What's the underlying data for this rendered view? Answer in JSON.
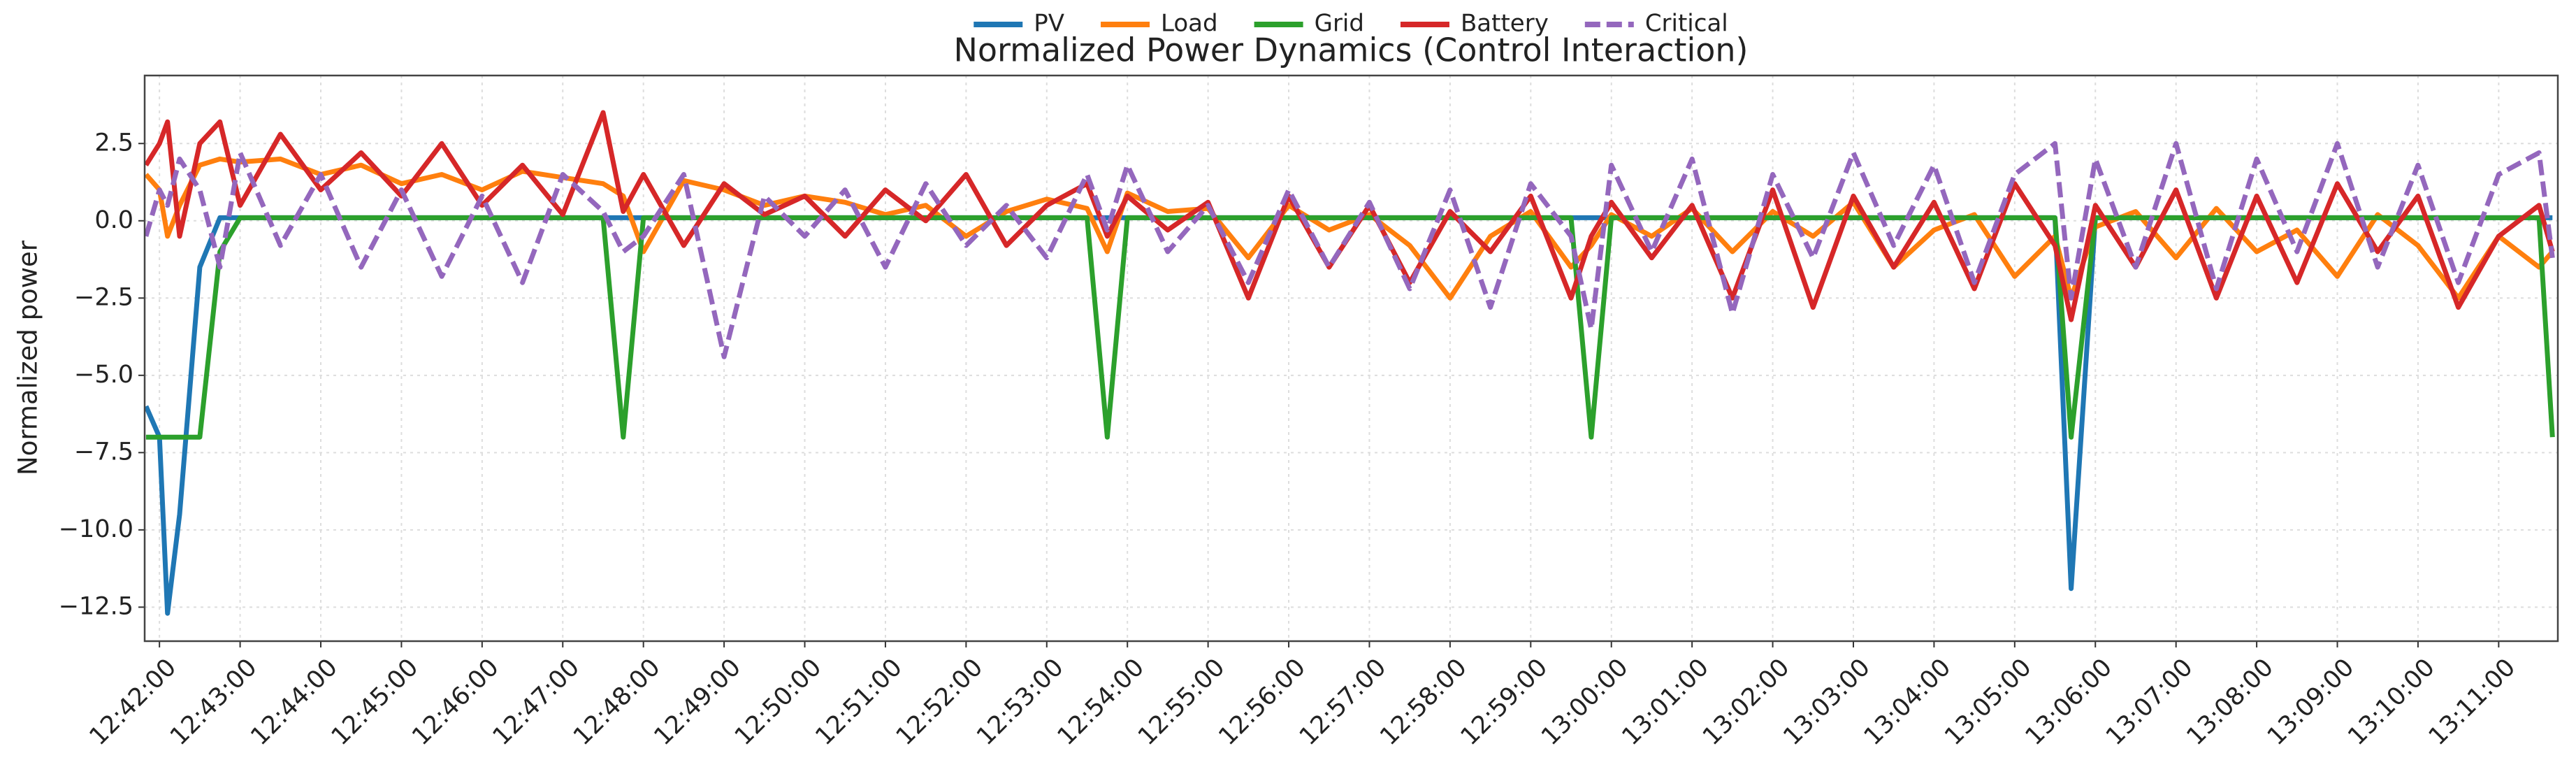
{
  "chart_data": {
    "type": "line",
    "title": "Normalized Power Dynamics (Control Interaction)",
    "y_label": "Normalized power",
    "grid": true,
    "legend": "top",
    "xlim": [
      "12:41:49",
      "13:11:44"
    ],
    "ylim": [
      -13.6,
      4.7
    ],
    "xticks": [
      "12:42:00",
      "12:43:00",
      "12:44:00",
      "12:45:00",
      "12:46:00",
      "12:47:00",
      "12:48:00",
      "12:49:00",
      "12:50:00",
      "12:51:00",
      "12:52:00",
      "12:53:00",
      "12:54:00",
      "12:55:00",
      "12:56:00",
      "12:57:00",
      "12:58:00",
      "12:59:00",
      "13:00:00",
      "13:01:00",
      "13:02:00",
      "13:03:00",
      "13:04:00",
      "13:05:00",
      "13:06:00",
      "13:07:00",
      "13:08:00",
      "13:09:00",
      "13:10:00",
      "13:11:00"
    ],
    "yticks": [
      2.5,
      {
        "value": 0,
        "label": "0.0"
      },
      {
        "value": -2.5,
        "label": "−2.5"
      },
      {
        "value": -5,
        "label": "−5.0"
      },
      {
        "value": -7.5,
        "label": "−7.5"
      },
      {
        "value": -10,
        "label": "−10.0"
      },
      {
        "value": -12.5,
        "label": "−12.5"
      }
    ],
    "x": [
      "12:41:50",
      "12:42:00",
      "12:42:06",
      "12:42:15",
      "12:42:30",
      "12:42:45",
      "12:43:00",
      "12:43:30",
      "12:44:00",
      "12:44:30",
      "12:45:00",
      "12:45:30",
      "12:46:00",
      "12:46:30",
      "12:47:00",
      "12:47:30",
      "12:47:45",
      "12:48:00",
      "12:48:30",
      "12:49:00",
      "12:49:30",
      "12:50:00",
      "12:50:30",
      "12:51:00",
      "12:51:30",
      "12:52:00",
      "12:52:30",
      "12:53:00",
      "12:53:30",
      "12:53:45",
      "12:54:00",
      "12:54:30",
      "12:55:00",
      "12:55:30",
      "12:56:00",
      "12:56:30",
      "12:57:00",
      "12:57:30",
      "12:58:00",
      "12:58:30",
      "12:59:00",
      "12:59:30",
      "12:59:45",
      "13:00:00",
      "13:00:30",
      "13:01:00",
      "13:01:30",
      "13:02:00",
      "13:02:30",
      "13:03:00",
      "13:03:30",
      "13:04:00",
      "13:04:30",
      "13:05:00",
      "13:05:30",
      "13:05:42",
      "13:06:00",
      "13:06:30",
      "13:07:00",
      "13:07:30",
      "13:08:00",
      "13:08:30",
      "13:09:00",
      "13:09:30",
      "13:10:00",
      "13:10:30",
      "13:11:00",
      "13:11:30",
      "13:11:40"
    ],
    "series": [
      {
        "name": "PV",
        "color": "#1f77b4",
        "dash": false,
        "values": [
          -6,
          -7,
          -12.7,
          -9.5,
          -1.5,
          0.1,
          0.1,
          0.1,
          0.1,
          0.1,
          0.1,
          0.1,
          0.1,
          0.1,
          0.1,
          0.1,
          0.1,
          0.1,
          0.1,
          0.1,
          0.1,
          0.1,
          0.1,
          0.1,
          0.1,
          0.1,
          0.1,
          0.1,
          0.1,
          0.1,
          0.1,
          0.1,
          0.1,
          0.1,
          0.1,
          0.1,
          0.1,
          0.1,
          0.1,
          0.1,
          0.1,
          0.1,
          0.1,
          0.1,
          0.1,
          0.1,
          0.1,
          0.1,
          0.1,
          0.1,
          0.1,
          0.1,
          0.1,
          0.1,
          0.1,
          -11.9,
          0.1,
          0.1,
          0.1,
          0.1,
          0.1,
          0.1,
          0.1,
          0.1,
          0.1,
          0.1,
          0.1,
          0.1,
          0.1
        ]
      },
      {
        "name": "Load",
        "color": "#ff7f0e",
        "dash": false,
        "values": [
          1.5,
          1.0,
          -0.5,
          0.5,
          1.8,
          2.0,
          1.9,
          2.0,
          1.5,
          1.8,
          1.2,
          1.5,
          1.0,
          1.6,
          1.4,
          1.2,
          0.8,
          -1.0,
          1.3,
          1.0,
          0.5,
          0.8,
          0.6,
          0.2,
          0.5,
          -0.5,
          0.3,
          0.7,
          0.4,
          -1.0,
          0.9,
          0.3,
          0.4,
          -1.2,
          0.5,
          -0.3,
          0.2,
          -0.8,
          -2.5,
          -0.5,
          0.3,
          -1.5,
          -0.8,
          0.2,
          -0.5,
          0.4,
          -1.0,
          0.3,
          -0.5,
          0.6,
          -1.5,
          -0.3,
          0.2,
          -1.8,
          -0.5,
          -2.5,
          -0.2,
          0.3,
          -1.2,
          0.4,
          -1.0,
          -0.3,
          -1.8,
          0.2,
          -0.8,
          -2.5,
          -0.5,
          -1.5,
          -1.0
        ]
      },
      {
        "name": "Grid",
        "color": "#2ca02c",
        "dash": false,
        "values": [
          -7,
          -7,
          -7,
          -7,
          -7,
          -1,
          0.1,
          0.1,
          0.1,
          0.1,
          0.1,
          0.1,
          0.1,
          0.1,
          0.1,
          0.1,
          -7,
          0.1,
          0.1,
          0.1,
          0.1,
          0.1,
          0.1,
          0.1,
          0.1,
          0.1,
          0.1,
          0.1,
          0.1,
          -7,
          0.1,
          0.1,
          0.1,
          0.1,
          0.1,
          0.1,
          0.1,
          0.1,
          0.1,
          0.1,
          0.1,
          0.1,
          -7,
          0.1,
          0.1,
          0.1,
          0.1,
          0.1,
          0.1,
          0.1,
          0.1,
          0.1,
          0.1,
          0.1,
          0.1,
          -7,
          0.1,
          0.1,
          0.1,
          0.1,
          0.1,
          0.1,
          0.1,
          0.1,
          0.1,
          0.1,
          0.1,
          0.1,
          -7
        ]
      },
      {
        "name": "Battery",
        "color": "#d62728",
        "dash": false,
        "values": [
          1.8,
          2.5,
          3.2,
          -0.5,
          2.5,
          3.2,
          0.5,
          2.8,
          1.0,
          2.2,
          0.8,
          2.5,
          0.5,
          1.8,
          0.2,
          3.5,
          0.3,
          1.5,
          -0.8,
          1.2,
          0.2,
          0.8,
          -0.5,
          1.0,
          0.0,
          1.5,
          -0.8,
          0.5,
          1.2,
          -0.5,
          0.8,
          -0.3,
          0.6,
          -2.5,
          0.8,
          -1.5,
          0.5,
          -2.0,
          0.3,
          -1.0,
          0.8,
          -2.5,
          -0.5,
          0.6,
          -1.2,
          0.5,
          -2.5,
          1.0,
          -2.8,
          0.8,
          -1.5,
          0.6,
          -2.2,
          1.2,
          -0.8,
          -3.2,
          0.5,
          -1.5,
          1.0,
          -2.5,
          0.8,
          -2.0,
          1.2,
          -1.0,
          0.8,
          -2.8,
          -0.5,
          0.5,
          -1.0
        ]
      },
      {
        "name": "Critical",
        "color": "#9467bd",
        "dash": true,
        "values": [
          -0.5,
          1.0,
          0.5,
          2.0,
          1.0,
          -1.5,
          2.2,
          -0.8,
          1.5,
          -1.5,
          1.0,
          -1.8,
          0.8,
          -2.0,
          1.5,
          0.3,
          -1.0,
          -0.5,
          1.5,
          -4.4,
          0.8,
          -0.5,
          1.0,
          -1.5,
          1.2,
          -0.8,
          0.5,
          -1.2,
          1.5,
          -0.3,
          1.8,
          -1.0,
          0.5,
          -2.0,
          1.0,
          -1.5,
          0.6,
          -2.2,
          1.0,
          -2.8,
          1.2,
          -0.5,
          -3.5,
          1.8,
          -1.0,
          2.0,
          -3.0,
          1.5,
          -1.2,
          2.2,
          -0.8,
          1.8,
          -2.0,
          1.5,
          2.5,
          -2.5,
          2.0,
          -1.5,
          2.5,
          -2.2,
          2.0,
          -1.0,
          2.5,
          -1.5,
          1.8,
          -2.0,
          1.5,
          2.2,
          -1.2
        ]
      }
    ]
  }
}
